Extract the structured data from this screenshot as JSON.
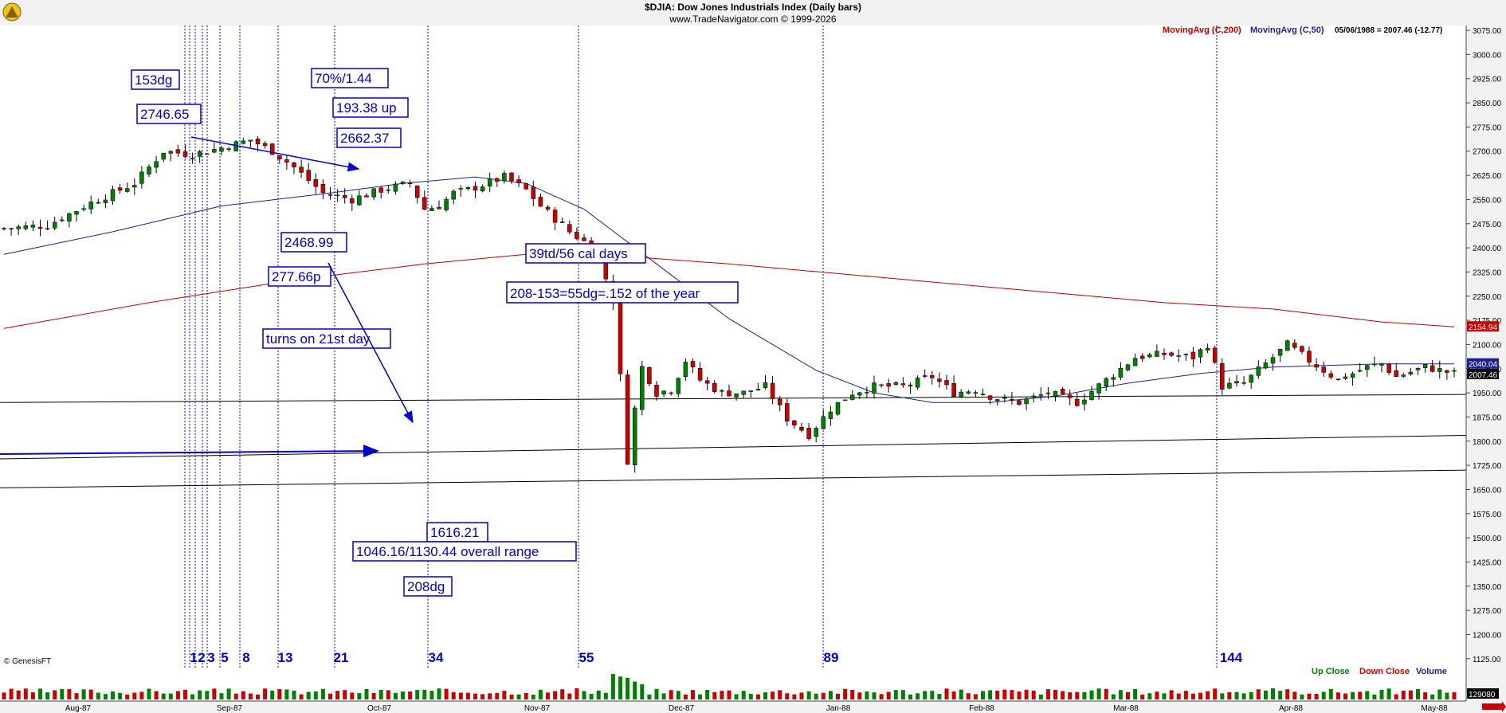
{
  "header": {
    "title": "$DJIA:  Dow Jones Industrials Index  (Daily bars)",
    "subtitle": "www.TradeNavigator.com © 1999-2026"
  },
  "legend": {
    "ma200_label": "MovingAvg (C,200)",
    "ma50_label": "MovingAvg (C,50)",
    "status_readout": "05/06/1988 = 2007.46 (-12.77)",
    "up_close": "Up Close",
    "down_close": "Down Close",
    "volume": "Volume"
  },
  "watermark": "© GenesisFT",
  "colors": {
    "up": "#008000",
    "down": "#cc0000",
    "ma200": "#c00000",
    "ma50": "#1f1f8f",
    "annotation": "#0000cc",
    "volume_up": "#008000",
    "volume_down": "#cc0000"
  },
  "annotations": {
    "a1": "153dg",
    "a2": "2746.65",
    "a3": "70%/1.44",
    "a4": "193.38 up",
    "a5": "2662.37",
    "a6": "2468.99",
    "a7": "277.66p",
    "a8": "turns on 21st day",
    "a9": "39td/56 cal days",
    "a10": "208-153=55dg=.152 of the year",
    "a11": "1616.21",
    "a12": "1046.16/1130.44  overall range",
    "a13": "208dg"
  },
  "fib_labels": [
    "1",
    "2",
    "3",
    "5",
    "8",
    "13",
    "21",
    "34",
    "55",
    "89",
    "144"
  ],
  "chart_data": {
    "type": "candlestick",
    "title": "$DJIA:  Dow Jones Industrials Index  (Daily bars)",
    "x_labels": [
      "Aug-87",
      "Sep-87",
      "Oct-87",
      "Nov-87",
      "Dec-87",
      "Jan-88",
      "Feb-88",
      "Mar-88",
      "Apr-88",
      "May-88"
    ],
    "y_ticks": [
      "3075.00",
      "3000.00",
      "2925.00",
      "2850.00",
      "2775.00",
      "2700.00",
      "2625.00",
      "2550.00",
      "2475.00",
      "2400.00",
      "2325.00",
      "2250.00",
      "2175.00",
      "2100.00",
      "2025.00",
      "1950.00",
      "1875.00",
      "1800.00",
      "1725.00",
      "1650.00",
      "1575.00",
      "1500.00",
      "1425.00",
      "1350.00",
      "1275.00",
      "1200.00",
      "1125.00"
    ],
    "ylim": [
      1080,
      3090
    ],
    "price_tags": {
      "ma200": "2154.94",
      "ma50": "2040.04",
      "close": "2007.46",
      "volume": "129080"
    },
    "close_path": [
      [
        0,
        2460
      ],
      [
        6,
        2470
      ],
      [
        12,
        2540
      ],
      [
        18,
        2600
      ],
      [
        22,
        2700
      ],
      [
        26,
        2690
      ],
      [
        30,
        2710
      ],
      [
        34,
        2735
      ],
      [
        37,
        2700
      ],
      [
        40,
        2650
      ],
      [
        44,
        2570
      ],
      [
        48,
        2550
      ],
      [
        52,
        2580
      ],
      [
        56,
        2600
      ],
      [
        58,
        2520
      ],
      [
        60,
        2530
      ],
      [
        62,
        2570
      ],
      [
        64,
        2580
      ],
      [
        66,
        2595
      ],
      [
        69,
        2620
      ],
      [
        72,
        2580
      ],
      [
        74,
        2530
      ],
      [
        76,
        2490
      ],
      [
        78,
        2450
      ],
      [
        80,
        2420
      ],
      [
        82,
        2370
      ],
      [
        84,
        2240
      ],
      [
        85,
        2000
      ],
      [
        86,
        1740
      ],
      [
        87,
        1900
      ],
      [
        88,
        2030
      ],
      [
        90,
        1950
      ],
      [
        92,
        1960
      ],
      [
        94,
        2050
      ],
      [
        96,
        1990
      ],
      [
        99,
        1950
      ],
      [
        102,
        1950
      ],
      [
        105,
        1970
      ],
      [
        108,
        1870
      ],
      [
        111,
        1820
      ],
      [
        114,
        1900
      ],
      [
        117,
        1950
      ],
      [
        120,
        1970
      ],
      [
        124,
        1970
      ],
      [
        128,
        2000
      ],
      [
        131,
        1950
      ],
      [
        134,
        1960
      ],
      [
        137,
        1930
      ],
      [
        140,
        1920
      ],
      [
        144,
        1950
      ],
      [
        148,
        1920
      ],
      [
        152,
        1990
      ],
      [
        156,
        2060
      ],
      [
        160,
        2070
      ],
      [
        164,
        2060
      ],
      [
        166,
        2100
      ],
      [
        168,
        1970
      ],
      [
        171,
        1980
      ],
      [
        175,
        2060
      ],
      [
        177,
        2100
      ],
      [
        180,
        2050
      ],
      [
        184,
        1990
      ],
      [
        188,
        2030
      ],
      [
        190,
        2040
      ],
      [
        192,
        2000
      ],
      [
        196,
        2030
      ],
      [
        200,
        2010
      ]
    ],
    "ma50_path": [
      [
        0,
        2380
      ],
      [
        15,
        2450
      ],
      [
        30,
        2530
      ],
      [
        45,
        2570
      ],
      [
        55,
        2600
      ],
      [
        65,
        2620
      ],
      [
        72,
        2600
      ],
      [
        80,
        2520
      ],
      [
        90,
        2350
      ],
      [
        100,
        2180
      ],
      [
        112,
        2020
      ],
      [
        120,
        1950
      ],
      [
        128,
        1920
      ],
      [
        136,
        1920
      ],
      [
        145,
        1940
      ],
      [
        155,
        1980
      ],
      [
        165,
        2010
      ],
      [
        175,
        2030
      ],
      [
        190,
        2040
      ],
      [
        200,
        2040
      ]
    ],
    "ma200_path": [
      [
        0,
        2150
      ],
      [
        20,
        2230
      ],
      [
        40,
        2300
      ],
      [
        58,
        2350
      ],
      [
        72,
        2380
      ],
      [
        85,
        2375
      ],
      [
        100,
        2350
      ],
      [
        115,
        2320
      ],
      [
        130,
        2290
      ],
      [
        145,
        2260
      ],
      [
        160,
        2230
      ],
      [
        175,
        2210
      ],
      [
        190,
        2170
      ],
      [
        200,
        2155
      ]
    ],
    "horizontal_lines": [
      {
        "from": [
          0,
          1920
        ],
        "to": [
          200,
          1945
        ]
      },
      {
        "from": [
          0,
          1745
        ],
        "to": [
          200,
          1818
        ]
      },
      {
        "from": [
          0,
          1655
        ],
        "to": [
          200,
          1710
        ]
      }
    ],
    "fib_day_positions": [
      24,
      25,
      26,
      27,
      29,
      31,
      36,
      44,
      56,
      76,
      109,
      164
    ],
    "volume_spikes": [
      [
        84,
        1.0
      ],
      [
        85,
        0.9
      ],
      [
        86,
        0.85
      ],
      [
        87,
        0.7
      ],
      [
        88,
        0.6
      ]
    ]
  }
}
